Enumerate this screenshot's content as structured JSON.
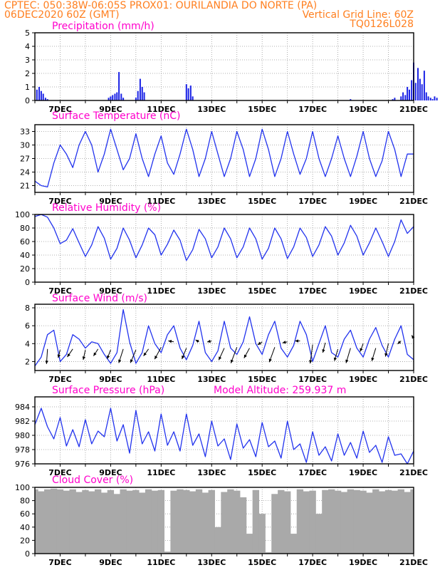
{
  "header": {
    "line1_left": "CPTEC:   050:38W-06:05S   PROX01: OURILANDIA DO NORTE (PA)",
    "line2_left": "06DEC2020 60Z (GMT)",
    "line2_right": "Vertical Grid Line: 60Z",
    "line3_right": "TQ0126L028"
  },
  "colors": {
    "header": "#ff7f1f",
    "title": "#ff00cc",
    "line": "#2233ee",
    "bar": "#1a22e6",
    "cloud": "#a9a9a9"
  },
  "chart_data": [
    {
      "id": "precipitation",
      "type": "bar",
      "title": "Precipitation (mm/h)",
      "ylim": [
        0,
        5
      ],
      "yticks": [
        0,
        1,
        2,
        3,
        4,
        5
      ],
      "x_tick_labels": [
        "7DEC",
        "9DEC",
        "11DEC",
        "13DEC",
        "15DEC",
        "17DEC",
        "19DEC",
        "21DEC"
      ],
      "x_start": "06DEC2020 00Z",
      "x_end": "21DEC2020 00Z",
      "x": [
        6.08,
        6.17,
        6.25,
        6.33,
        6.42,
        6.5,
        8.92,
        9.0,
        9.08,
        9.17,
        9.25,
        9.33,
        9.42,
        9.5,
        10.0,
        10.08,
        10.17,
        10.25,
        10.33,
        12.0,
        12.08,
        12.17,
        12.25,
        18.5,
        20.17,
        20.25,
        20.5,
        20.58,
        20.67,
        20.75,
        20.83,
        20.92,
        21.0,
        21.08,
        21.17,
        21.25,
        21.33,
        21.42,
        21.5,
        21.58,
        21.67,
        21.75,
        21.83,
        21.92
      ],
      "values": [
        0.8,
        1.0,
        0.7,
        0.5,
        0.2,
        0.1,
        0.2,
        0.3,
        0.4,
        0.5,
        0.6,
        2.1,
        0.5,
        0.2,
        0.2,
        0.7,
        1.6,
        1.0,
        0.6,
        1.2,
        0.9,
        1.1,
        0.3,
        0.1,
        0.1,
        0.2,
        0.3,
        0.6,
        0.4,
        1.0,
        0.8,
        1.5,
        2.8,
        1.3,
        2.4,
        1.6,
        1.2,
        2.2,
        0.6,
        0.3,
        0.2,
        0.1,
        0.3,
        0.2
      ]
    },
    {
      "id": "temperature",
      "type": "line",
      "title": "Surface Temperature (nC)",
      "ylim": [
        19.5,
        34.5
      ],
      "yticks": [
        21,
        24,
        27,
        30,
        33
      ],
      "x_tick_labels": [
        "7DEC",
        "9DEC",
        "11DEC",
        "13DEC",
        "15DEC",
        "17DEC",
        "19DEC",
        "21DEC"
      ],
      "x": [
        6.0,
        6.25,
        6.5,
        6.75,
        7.0,
        7.25,
        7.5,
        7.75,
        8.0,
        8.25,
        8.5,
        8.75,
        9.0,
        9.25,
        9.5,
        9.75,
        10.0,
        10.25,
        10.5,
        10.75,
        11.0,
        11.25,
        11.5,
        11.75,
        12.0,
        12.25,
        12.5,
        12.75,
        13.0,
        13.25,
        13.5,
        13.75,
        14.0,
        14.25,
        14.5,
        14.75,
        15.0,
        15.25,
        15.5,
        15.75,
        16.0,
        16.25,
        16.5,
        16.75,
        17.0,
        17.25,
        17.5,
        17.75,
        18.0,
        18.25,
        18.5,
        18.75,
        19.0,
        19.25,
        19.5,
        19.75,
        20.0,
        20.25,
        20.5,
        20.75,
        21.0
      ],
      "series": [
        {
          "values": [
            22,
            21,
            20.7,
            26,
            30,
            28,
            25,
            30,
            33,
            30,
            24,
            28,
            33.5,
            29,
            24.5,
            27,
            32.5,
            27,
            23,
            28,
            32,
            26,
            23.5,
            28,
            33.5,
            29,
            23,
            27,
            33,
            28,
            23,
            27,
            33,
            29,
            23,
            27,
            33.5,
            29,
            23,
            27,
            33,
            28,
            23.5,
            27,
            33,
            27,
            23,
            27,
            32,
            27,
            23,
            27.5,
            33,
            27,
            23,
            26.5,
            33,
            29,
            23,
            28,
            28
          ]
        }
      ]
    },
    {
      "id": "humidity",
      "type": "line",
      "title": "Relative Humidity (%)",
      "ylim": [
        0,
        100
      ],
      "yticks": [
        0,
        20,
        40,
        60,
        80,
        100
      ],
      "x_tick_labels": [
        "7DEC",
        "9DEC",
        "11DEC",
        "13DEC",
        "15DEC",
        "17DEC",
        "19DEC",
        "21DEC"
      ],
      "x": [
        6.0,
        6.25,
        6.5,
        6.75,
        7.0,
        7.25,
        7.5,
        7.75,
        8.0,
        8.25,
        8.5,
        8.75,
        9.0,
        9.25,
        9.5,
        9.75,
        10.0,
        10.25,
        10.5,
        10.75,
        11.0,
        11.25,
        11.5,
        11.75,
        12.0,
        12.25,
        12.5,
        12.75,
        13.0,
        13.25,
        13.5,
        13.75,
        14.0,
        14.25,
        14.5,
        14.75,
        15.0,
        15.25,
        15.5,
        15.75,
        16.0,
        16.25,
        16.5,
        16.75,
        17.0,
        17.25,
        17.5,
        17.75,
        18.0,
        18.25,
        18.5,
        18.75,
        19.0,
        19.25,
        19.5,
        19.75,
        20.0,
        20.25,
        20.5,
        20.75,
        21.0
      ],
      "series": [
        {
          "values": [
            97,
            100,
            96,
            80,
            57,
            62,
            79,
            58,
            38,
            55,
            82,
            65,
            34,
            50,
            80,
            62,
            36,
            55,
            80,
            70,
            40,
            56,
            77,
            62,
            32,
            48,
            78,
            64,
            36,
            52,
            80,
            64,
            36,
            52,
            80,
            64,
            34,
            50,
            80,
            64,
            35,
            52,
            80,
            66,
            38,
            55,
            82,
            68,
            40,
            58,
            84,
            68,
            40,
            58,
            80,
            60,
            38,
            60,
            92,
            72,
            82
          ]
        }
      ]
    },
    {
      "id": "wind",
      "type": "line",
      "title": "Surface Wind (m/s)",
      "ylim": [
        1,
        8.4
      ],
      "yticks": [
        2,
        4,
        6,
        8
      ],
      "x_tick_labels": [
        "7DEC",
        "9DEC",
        "11DEC",
        "13DEC",
        "15DEC",
        "17DEC",
        "19DEC",
        "21DEC"
      ],
      "x": [
        6.0,
        6.25,
        6.5,
        6.75,
        7.0,
        7.25,
        7.5,
        7.75,
        8.0,
        8.25,
        8.5,
        8.75,
        9.0,
        9.25,
        9.5,
        9.75,
        10.0,
        10.25,
        10.5,
        10.75,
        11.0,
        11.25,
        11.5,
        11.75,
        12.0,
        12.25,
        12.5,
        12.75,
        13.0,
        13.25,
        13.5,
        13.75,
        14.0,
        14.25,
        14.5,
        14.75,
        15.0,
        15.25,
        15.5,
        15.75,
        16.0,
        16.25,
        16.5,
        16.75,
        17.0,
        17.25,
        17.5,
        17.75,
        18.0,
        18.25,
        18.5,
        18.75,
        19.0,
        19.25,
        19.5,
        19.75,
        20.0,
        20.25,
        20.5,
        20.75,
        21.0
      ],
      "series": [
        {
          "values": [
            1.5,
            2.5,
            5.0,
            5.5,
            2.0,
            2.8,
            5.0,
            4.5,
            3.5,
            4.2,
            4.0,
            2.8,
            1.8,
            3.0,
            7.8,
            4.2,
            1.8,
            3.0,
            6.0,
            4.0,
            3.0,
            5.0,
            6.0,
            3.5,
            2.2,
            3.8,
            6.5,
            3.0,
            2.0,
            3.2,
            6.5,
            3.5,
            2.8,
            4.2,
            7.0,
            4.0,
            2.8,
            5.0,
            6.5,
            3.5,
            2.5,
            3.8,
            6.5,
            5.0,
            2.0,
            4.0,
            6.0,
            3.0,
            2.5,
            4.5,
            5.5,
            3.5,
            2.5,
            4.5,
            5.8,
            3.8,
            2.5,
            4.5,
            6.0,
            2.8,
            2.2
          ]
        }
      ],
      "wind_vectors": [
        {
          "x": 6.5,
          "y": 3.4,
          "dx": -0.1,
          "dy": -1.5
        },
        {
          "x": 7.0,
          "y": 3.3,
          "dx": -0.2,
          "dy": -0.8
        },
        {
          "x": 7.5,
          "y": 3.4,
          "dx": -0.55,
          "dy": -0.8
        },
        {
          "x": 8.0,
          "y": 3.3,
          "dx": -0.22,
          "dy": -1.0
        },
        {
          "x": 8.5,
          "y": 3.4,
          "dx": -0.45,
          "dy": -0.7
        },
        {
          "x": 9.0,
          "y": 3.3,
          "dx": -0.35,
          "dy": -0.9
        },
        {
          "x": 9.5,
          "y": 3.4,
          "dx": -0.45,
          "dy": -1.4
        },
        {
          "x": 10.0,
          "y": 3.3,
          "dx": -0.55,
          "dy": -1.3
        },
        {
          "x": 10.5,
          "y": 3.4,
          "dx": -0.5,
          "dy": -0.7
        },
        {
          "x": 11.0,
          "y": 3.6,
          "dx": -0.65,
          "dy": -1.2
        },
        {
          "x": 11.5,
          "y": 4.2,
          "dx": -0.55,
          "dy": 0.1
        },
        {
          "x": 12.0,
          "y": 3.5,
          "dx": -0.45,
          "dy": -1.1
        },
        {
          "x": 12.5,
          "y": 4.2,
          "dx": -0.35,
          "dy": 0.2
        },
        {
          "x": 13.0,
          "y": 4.3,
          "dx": -0.45,
          "dy": -0.1
        },
        {
          "x": 13.5,
          "y": 3.5,
          "dx": -0.55,
          "dy": -1.2
        },
        {
          "x": 14.0,
          "y": 3.6,
          "dx": -0.6,
          "dy": -1.6
        },
        {
          "x": 14.5,
          "y": 3.5,
          "dx": -0.55,
          "dy": -1.0
        },
        {
          "x": 15.0,
          "y": 4.2,
          "dx": -0.45,
          "dy": -0.3
        },
        {
          "x": 15.5,
          "y": 3.6,
          "dx": -0.55,
          "dy": -1.5
        },
        {
          "x": 16.0,
          "y": 4.2,
          "dx": -0.5,
          "dy": -0.1
        },
        {
          "x": 16.5,
          "y": 4.3,
          "dx": -0.5,
          "dy": 0.0
        },
        {
          "x": 17.0,
          "y": 3.9,
          "dx": -0.25,
          "dy": -1.9
        },
        {
          "x": 17.5,
          "y": 4.1,
          "dx": -0.25,
          "dy": -1.0
        },
        {
          "x": 18.0,
          "y": 3.4,
          "dx": -0.35,
          "dy": -1.2
        },
        {
          "x": 18.5,
          "y": 3.5,
          "dx": -0.45,
          "dy": -1.5
        },
        {
          "x": 19.0,
          "y": 4.0,
          "dx": -0.3,
          "dy": -0.8
        },
        {
          "x": 19.5,
          "y": 3.5,
          "dx": -0.4,
          "dy": -1.3
        },
        {
          "x": 20.0,
          "y": 4.0,
          "dx": -0.3,
          "dy": -1.3
        },
        {
          "x": 20.5,
          "y": 4.3,
          "dx": -0.35,
          "dy": -0.3
        },
        {
          "x": 21.0,
          "y": 4.6,
          "dx": -0.2,
          "dy": 0.3
        }
      ]
    },
    {
      "id": "pressure",
      "type": "line",
      "title": "Surface Pressure (hPa)",
      "annotation": "Model Altitude: 259.937 m",
      "ylim": [
        976,
        985.4
      ],
      "yticks": [
        976,
        978,
        980,
        982,
        984
      ],
      "x_tick_labels": [
        "7DEC",
        "9DEC",
        "11DEC",
        "13DEC",
        "15DEC",
        "17DEC",
        "19DEC",
        "21DEC"
      ],
      "x": [
        6.0,
        6.25,
        6.5,
        6.75,
        7.0,
        7.25,
        7.5,
        7.75,
        8.0,
        8.25,
        8.5,
        8.75,
        9.0,
        9.25,
        9.5,
        9.75,
        10.0,
        10.25,
        10.5,
        10.75,
        11.0,
        11.25,
        11.5,
        11.75,
        12.0,
        12.25,
        12.5,
        12.75,
        13.0,
        13.25,
        13.5,
        13.75,
        14.0,
        14.25,
        14.5,
        14.75,
        15.0,
        15.25,
        15.5,
        15.75,
        16.0,
        16.25,
        16.5,
        16.75,
        17.0,
        17.25,
        17.5,
        17.75,
        18.0,
        18.25,
        18.5,
        18.75,
        19.0,
        19.25,
        19.5,
        19.75,
        20.0,
        20.25,
        20.5,
        20.75,
        21.0
      ],
      "series": [
        {
          "values": [
            981.5,
            983.8,
            981.2,
            979.5,
            982.5,
            978.5,
            980.8,
            978.4,
            982.2,
            978.8,
            980.6,
            979.8,
            983.8,
            979.2,
            981.5,
            977.5,
            983.5,
            978.8,
            980.5,
            977.8,
            983.0,
            978.6,
            980.5,
            977.8,
            983.0,
            978.6,
            980.2,
            977.0,
            982.0,
            978.5,
            979.5,
            976.6,
            981.6,
            978.2,
            979.4,
            977.0,
            981.8,
            978.4,
            979.2,
            976.8,
            982.0,
            978.0,
            978.8,
            976.2,
            980.5,
            977.2,
            978.4,
            976.4,
            980.2,
            977.2,
            979.0,
            976.8,
            980.6,
            977.6,
            978.6,
            976.2,
            979.8,
            977.2,
            977.4,
            976.0,
            977.8
          ]
        }
      ]
    },
    {
      "id": "cloud",
      "type": "bar",
      "title": "Cloud Cover (%)",
      "ylim": [
        0,
        100
      ],
      "yticks": [
        0,
        20,
        40,
        60,
        80,
        100
      ],
      "x_tick_labels": [
        "7DEC",
        "9DEC",
        "11DEC",
        "13DEC",
        "15DEC",
        "17DEC",
        "19DEC",
        "21DEC"
      ],
      "x": [
        6.0,
        6.25,
        6.5,
        6.75,
        7.0,
        7.25,
        7.5,
        7.75,
        8.0,
        8.25,
        8.5,
        8.75,
        9.0,
        9.25,
        9.5,
        9.75,
        10.0,
        10.25,
        10.5,
        10.75,
        11.0,
        11.25,
        11.5,
        11.75,
        12.0,
        12.25,
        12.5,
        12.75,
        13.0,
        13.25,
        13.5,
        13.75,
        14.0,
        14.25,
        14.5,
        14.75,
        15.0,
        15.25,
        15.5,
        15.75,
        16.0,
        16.25,
        16.5,
        16.75,
        17.0,
        17.25,
        17.5,
        17.75,
        18.0,
        18.25,
        18.5,
        18.75,
        19.0,
        19.25,
        19.5,
        19.75,
        20.0,
        20.25,
        20.5,
        20.75,
        21.0
      ],
      "values": [
        97,
        94,
        97,
        98,
        97,
        95,
        97,
        93,
        96,
        94,
        97,
        92,
        96,
        90,
        97,
        95,
        96,
        92,
        97,
        95,
        96,
        3,
        95,
        97,
        96,
        94,
        97,
        92,
        96,
        40,
        93,
        97,
        95,
        85,
        30,
        96,
        60,
        2,
        90,
        96,
        94,
        30,
        97,
        94,
        95,
        60,
        96,
        97,
        95,
        93,
        97,
        96,
        95,
        92,
        97,
        94,
        96,
        95,
        97,
        93,
        97
      ]
    }
  ]
}
